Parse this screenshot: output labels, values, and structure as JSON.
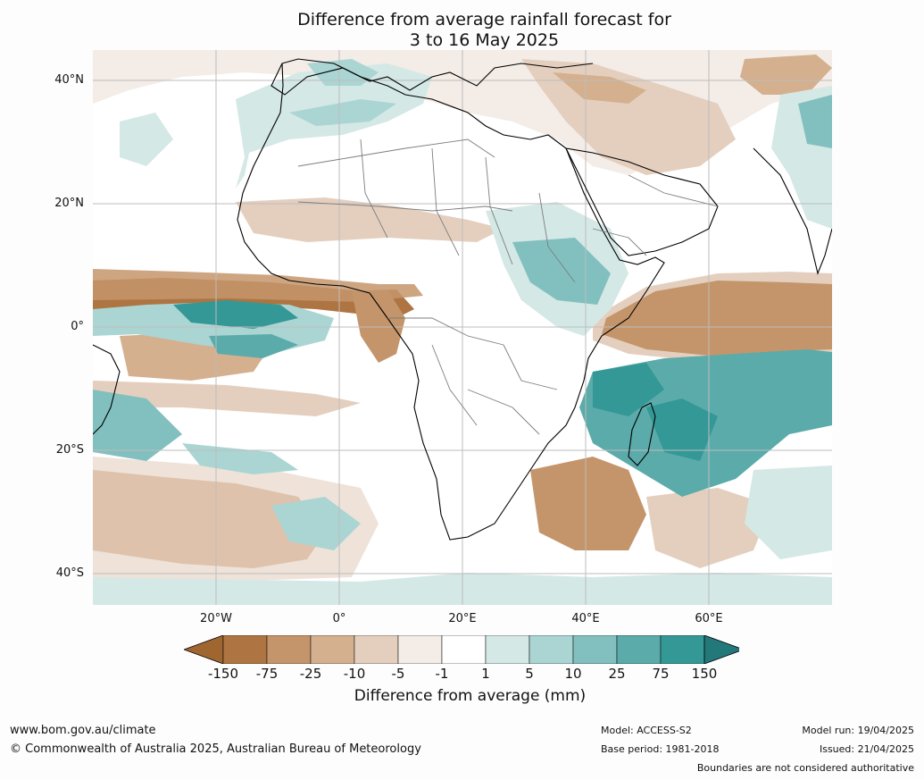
{
  "title": {
    "line1": "Difference from average rainfall forecast for",
    "line2": "3 to 16 May 2025"
  },
  "axes": {
    "y_labels": [
      "40°N",
      "20°N",
      "0°",
      "20°S",
      "40°S"
    ],
    "x_labels": [
      "20°W",
      "0°",
      "20°E",
      "40°E",
      "60°E"
    ]
  },
  "legend": {
    "ticks": [
      "-150",
      "-75",
      "-25",
      "-10",
      "-5",
      "-1",
      "1",
      "5",
      "10",
      "25",
      "75",
      "150"
    ],
    "colors": [
      "#a0662f",
      "#ae7441",
      "#c4956b",
      "#d4b08f",
      "#e4cfbf",
      "#f4ece6",
      "#ffffff",
      "#d4e8e6",
      "#aad5d3",
      "#82c0bf",
      "#5aabaa",
      "#349896",
      "#23797a"
    ],
    "label": "Difference from average (mm)"
  },
  "footer": {
    "website": "www.bom.gov.au/climate",
    "copyright": "© Commonwealth of Australia 2025, Australian Bureau of Meteorology",
    "model": "Model: ACCESS-S2",
    "base_period": "Base period: 1981-2018",
    "model_run": "Model run: 19/04/2025",
    "issued": "Issued: 21/04/2025",
    "disclaimer": "Boundaries are not considered authoritative"
  }
}
